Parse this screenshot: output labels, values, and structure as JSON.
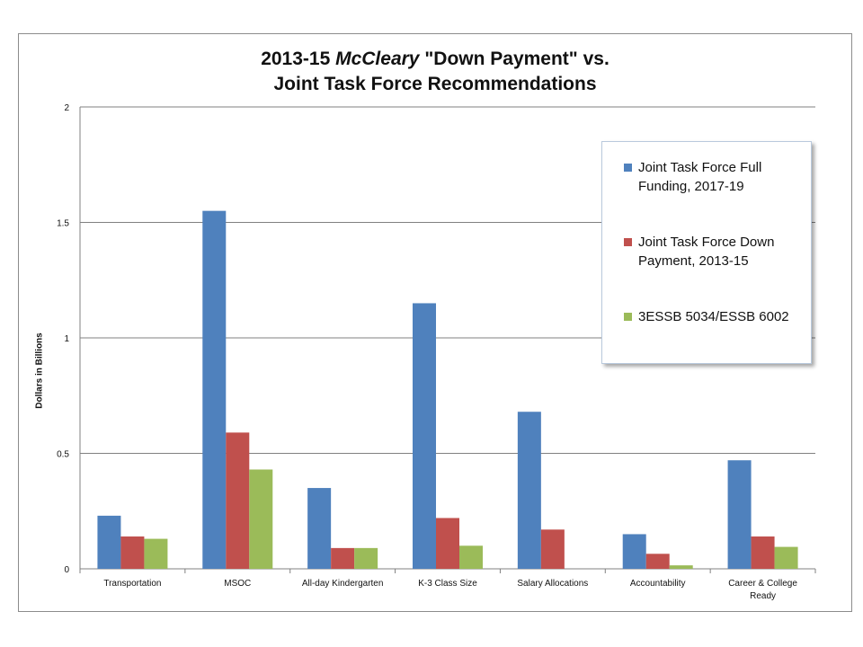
{
  "chart_data": {
    "type": "bar",
    "title_parts": [
      "2013-15 ",
      "McCleary",
      " \"Down Payment\" vs."
    ],
    "title_line2": "Joint Task Force Recommendations",
    "xlabel": "",
    "ylabel": "Dollars in Billions",
    "ylim": [
      0,
      2
    ],
    "yticks": [
      "0",
      "0.5",
      "1",
      "1.5",
      "2"
    ],
    "ytick_values": [
      0,
      0.5,
      1,
      1.5,
      2
    ],
    "grid": "horizontal",
    "legend_position": "top-right",
    "categories": [
      [
        "Transportation"
      ],
      [
        "MSOC"
      ],
      [
        "All-day Kindergarten"
      ],
      [
        "K-3 Class Size"
      ],
      [
        "Salary Allocations"
      ],
      [
        "Accountability"
      ],
      [
        "Career & College",
        "Ready"
      ]
    ],
    "series": [
      {
        "name_lines": [
          "Joint Task Force Full",
          "Funding, 2017-19"
        ],
        "color": "#4f81bd",
        "values": [
          0.23,
          1.55,
          0.35,
          1.15,
          0.68,
          0.15,
          0.47
        ]
      },
      {
        "name_lines": [
          "Joint Task Force Down",
          "Payment, 2013-15"
        ],
        "color": "#c0504d",
        "values": [
          0.14,
          0.59,
          0.09,
          0.22,
          0.17,
          0.065,
          0.14
        ]
      },
      {
        "name_lines": [
          "3ESSB 5034/ESSB 6002"
        ],
        "color": "#9bbb59",
        "values": [
          0.13,
          0.43,
          0.09,
          0.1,
          0.0,
          0.015,
          0.095
        ]
      }
    ]
  }
}
